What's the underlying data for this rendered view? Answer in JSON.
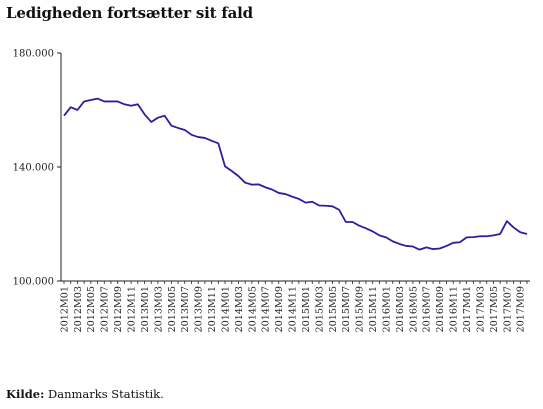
{
  "header": {
    "title": "Ledigheden fortsætter sit fald"
  },
  "footer": {
    "source_label": "Kilde:",
    "source_text": " Danmarks Statistik."
  },
  "chart_data": {
    "type": "line",
    "title": "Ledigheden fortsætter sit fald",
    "xlabel": "",
    "ylabel": "",
    "ylim": [
      100000,
      180000
    ],
    "yticks": [
      100000,
      140000,
      180000
    ],
    "ytick_labels": [
      "100.000",
      "140.000",
      "180.000"
    ],
    "line_color": "#2b1f9c",
    "grid": false,
    "x": [
      "2012M01",
      "2012M02",
      "2012M03",
      "2012M04",
      "2012M05",
      "2012M06",
      "2012M07",
      "2012M08",
      "2012M09",
      "2012M10",
      "2012M11",
      "2012M12",
      "2013M01",
      "2013M02",
      "2013M03",
      "2013M04",
      "2013M05",
      "2013M06",
      "2013M07",
      "2013M08",
      "2013M09",
      "2013M10",
      "2013M11",
      "2013M12",
      "2014M01",
      "2014M02",
      "2014M03",
      "2014M04",
      "2014M05",
      "2014M06",
      "2014M07",
      "2014M08",
      "2014M09",
      "2014M10",
      "2014M11",
      "2014M12",
      "2015M01",
      "2015M02",
      "2015M03",
      "2015M04",
      "2015M05",
      "2015M06",
      "2015M07",
      "2015M08",
      "2015M09",
      "2015M10",
      "2015M11",
      "2015M12",
      "2016M01",
      "2016M02",
      "2016M03",
      "2016M04",
      "2016M05",
      "2016M06",
      "2016M07",
      "2016M08",
      "2016M09",
      "2016M10",
      "2016M11",
      "2016M12",
      "2017M01",
      "2017M02",
      "2017M03",
      "2017M04",
      "2017M05",
      "2017M06",
      "2017M07",
      "2017M08",
      "2017M09",
      "2017M10"
    ],
    "xtick_labels": [
      "2012M01",
      "2012M03",
      "2012M05",
      "2012M07",
      "2012M09",
      "2012M11",
      "2013M01",
      "2013M03",
      "2013M05",
      "2013M07",
      "2013M09",
      "2013M11",
      "2014M01",
      "2014M03",
      "2014M05",
      "2014M07",
      "2014M09",
      "2014M11",
      "2015M01",
      "2015M03",
      "2015M05",
      "2015M07",
      "2015M09",
      "2015M11",
      "2016M01",
      "2016M03",
      "2016M05",
      "2016M07",
      "2016M09",
      "2016M11",
      "2017M01",
      "2017M03",
      "2017M05",
      "2017M07",
      "2017M09"
    ],
    "series": [
      {
        "name": "",
        "values": [
          158000,
          161000,
          160000,
          163000,
          163500,
          164000,
          163000,
          163000,
          163000,
          162000,
          161500,
          162000,
          158500,
          155800,
          157300,
          158000,
          154500,
          153700,
          153000,
          151300,
          150500,
          150200,
          149200,
          148300,
          140200,
          138600,
          136800,
          134500,
          133800,
          133900,
          132900,
          132100,
          130900,
          130500,
          129600,
          128800,
          127500,
          127800,
          126500,
          126400,
          126200,
          125000,
          120700,
          120700,
          119400,
          118500,
          117400,
          116000,
          115300,
          113900,
          113000,
          112300,
          112100,
          111000,
          111800,
          111200,
          111400,
          112300,
          113400,
          113600,
          115300,
          115400,
          115700,
          115700,
          116000,
          116500,
          121000,
          118800,
          117100,
          116500
        ]
      }
    ]
  }
}
